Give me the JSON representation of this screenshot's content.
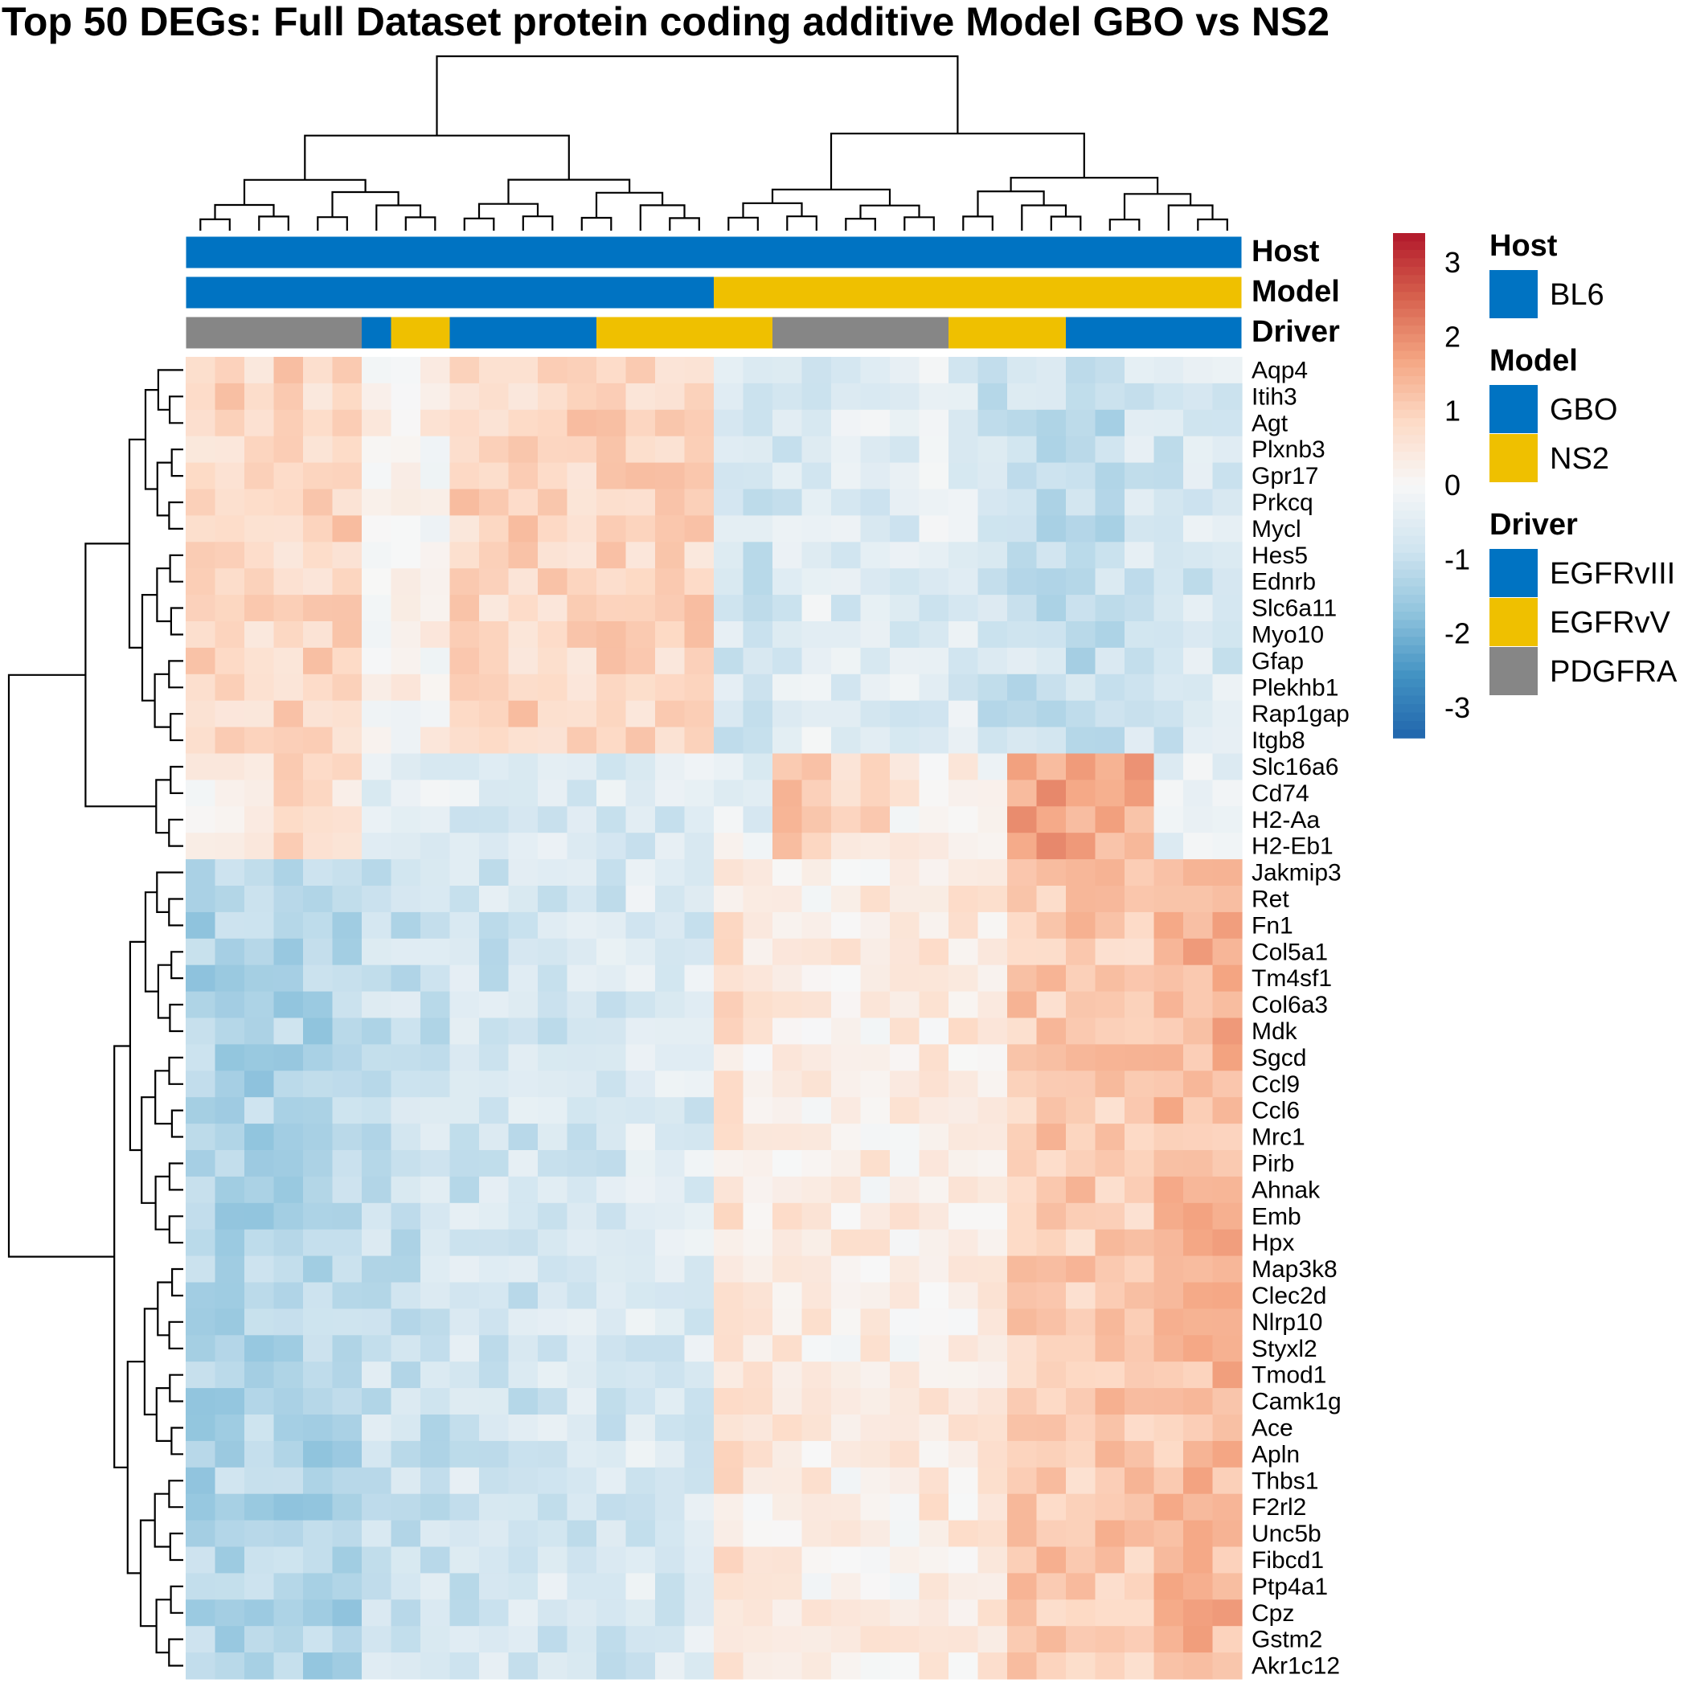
{
  "chart_data": {
    "type": "heatmap",
    "title": "Top 50 DEGs: Full Dataset protein coding additive Model GBO vs NS2",
    "rows": [
      "Aqp4",
      "Itih3",
      "Agt",
      "Plxnb3",
      "Gpr17",
      "Prkcq",
      "Mycl",
      "Hes5",
      "Ednrb",
      "Slc6a11",
      "Myo10",
      "Gfap",
      "Plekhb1",
      "Rap1gap",
      "Itgb8",
      "Slc16a6",
      "Cd74",
      "H2-Aa",
      "H2-Eb1",
      "Jakmip3",
      "Ret",
      "Fn1",
      "Col5a1",
      "Tm4sf1",
      "Col6a3",
      "Mdk",
      "Sgcd",
      "Ccl9",
      "Ccl6",
      "Mrc1",
      "Pirb",
      "Ahnak",
      "Emb",
      "Hpx",
      "Map3k8",
      "Clec2d",
      "Nlrp10",
      "Styxl2",
      "Tmod1",
      "Camk1g",
      "Ace",
      "Apln",
      "Thbs1",
      "F2rl2",
      "Unc5b",
      "Fibcd1",
      "Ptp4a1",
      "Cpz",
      "Gstm2",
      "Akr1c12"
    ],
    "n_columns": 36,
    "color_scale": {
      "min": -3.4,
      "max": 3.4,
      "ticks": [
        "3",
        "2",
        "1",
        "0",
        "-1",
        "-2",
        "-3"
      ],
      "tick_values": [
        3,
        2,
        1,
        0,
        -1,
        -2,
        -3
      ],
      "colors": [
        "#2166ac",
        "#4393c3",
        "#92c5de",
        "#d1e5f0",
        "#f7f7f7",
        "#fddbc7",
        "#f4a582",
        "#d6604d",
        "#b2182b"
      ]
    },
    "annotations": [
      {
        "name": "Host",
        "segments": [
          {
            "label": "BL6",
            "count": 36
          }
        ]
      },
      {
        "name": "Model",
        "segments": [
          {
            "label": "GBO",
            "count": 18
          },
          {
            "label": "NS2",
            "count": 18
          }
        ]
      },
      {
        "name": "Driver",
        "segments": [
          {
            "label": "PDGFRA",
            "count": 6
          },
          {
            "label": "EGFRvIII",
            "count": 1
          },
          {
            "label": "EGFRvV",
            "count": 2
          },
          {
            "label": "EGFRvIII",
            "count": 5
          },
          {
            "label": "EGFRvV",
            "count": 6
          },
          {
            "label": "PDGFRA",
            "count": 6
          },
          {
            "label": "EGFRvV",
            "count": 4
          },
          {
            "label": "EGFRvIII",
            "count": 6
          }
        ]
      }
    ],
    "annotation_colors": {
      "BL6": "#0073c2",
      "GBO": "#0073c2",
      "NS2": "#efc000",
      "EGFRvIII": "#0073c2",
      "EGFRvV": "#efc000",
      "PDGFRA": "#868686"
    },
    "legend": [
      {
        "title": "Host",
        "items": [
          "BL6"
        ]
      },
      {
        "title": "Model",
        "items": [
          "GBO",
          "NS2"
        ]
      },
      {
        "title": "Driver",
        "items": [
          "EGFRvIII",
          "EGFRvV",
          "PDGFRA"
        ]
      }
    ],
    "row_group_sizes": [
      15,
      4,
      31
    ],
    "column_group_sizes": [
      9,
      9,
      8,
      10
    ],
    "row_profiles": {
      "upper_block": [
        0.9,
        0.9,
        0.9,
        0.9,
        0.9,
        0.9,
        0.2,
        0.2,
        0.2,
        0.9,
        0.9,
        0.9,
        0.9,
        0.9,
        0.9,
        0.9,
        0.9,
        0.9,
        -0.7,
        -0.8,
        -0.6,
        -0.5,
        -0.6,
        -0.5,
        -0.6,
        -0.5,
        -0.6,
        -0.9,
        -0.9,
        -1.0,
        -1.1,
        -1.0,
        -0.7,
        -0.8,
        -0.7,
        -0.6
      ],
      "mhc_block": [
        0.3,
        0.3,
        0.7,
        0.7,
        0.7,
        0.6,
        -0.5,
        -0.5,
        -0.5,
        -0.6,
        -0.6,
        -0.6,
        -0.6,
        -0.6,
        -0.6,
        -0.6,
        -0.6,
        -0.6,
        -0.2,
        -0.4,
        1.3,
        1.3,
        0.7,
        0.7,
        0.3,
        0.2,
        0.2,
        0.1,
        1.7,
        1.7,
        1.7,
        1.6,
        1.6,
        -0.4,
        -0.4,
        -0.4
      ],
      "lower_block": [
        -1.3,
        -1.3,
        -1.3,
        -1.3,
        -1.3,
        -1.3,
        -0.9,
        -0.9,
        -0.9,
        -0.8,
        -0.8,
        -0.8,
        -0.7,
        -0.7,
        -0.7,
        -0.6,
        -0.6,
        -0.6,
        0.6,
        0.4,
        0.4,
        0.3,
        0.3,
        0.3,
        0.3,
        0.4,
        0.4,
        0.4,
        1.1,
        1.1,
        1.1,
        1.1,
        1.1,
        1.3,
        1.4,
        1.4
      ]
    }
  }
}
